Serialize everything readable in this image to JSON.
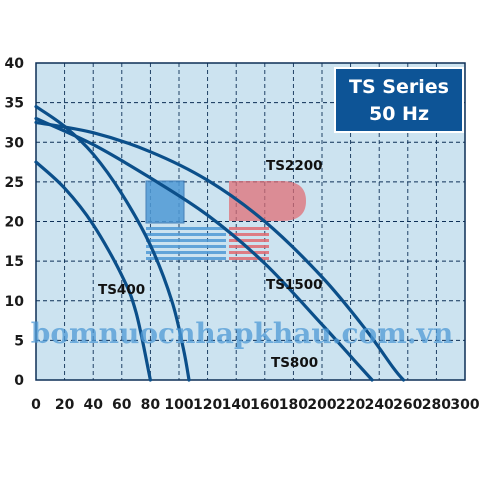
{
  "chart_data": {
    "type": "line",
    "title_lines": [
      "TS Series",
      "50 Hz"
    ],
    "xlabel": "",
    "ylabel": "",
    "xlim": [
      0,
      300
    ],
    "ylim": [
      0,
      40
    ],
    "x_ticks": [
      0,
      20,
      40,
      60,
      80,
      100,
      120,
      140,
      160,
      180,
      200,
      220,
      240,
      260,
      280,
      300
    ],
    "y_ticks": [
      0,
      5,
      10,
      15,
      20,
      25,
      30,
      35,
      40
    ],
    "grid": true,
    "series": [
      {
        "name": "TS400",
        "points": [
          [
            0,
            27.5
          ],
          [
            20,
            24.2
          ],
          [
            40,
            19.6
          ],
          [
            60,
            13.2
          ],
          [
            70,
            8.5
          ],
          [
            80,
            0
          ]
        ]
      },
      {
        "name": "TS800",
        "points": [
          [
            0,
            34.5
          ],
          [
            20,
            32.0
          ],
          [
            40,
            28.5
          ],
          [
            60,
            23.5
          ],
          [
            80,
            17.0
          ],
          [
            95,
            10.0
          ],
          [
            103,
            4.0
          ],
          [
            107,
            0
          ]
        ]
      },
      {
        "name": "TS1500",
        "points": [
          [
            0,
            33.0
          ],
          [
            40,
            29.7
          ],
          [
            80,
            25.5
          ],
          [
            120,
            20.8
          ],
          [
            160,
            14.7
          ],
          [
            200,
            7.0
          ],
          [
            220,
            3.0
          ],
          [
            235,
            0
          ]
        ]
      },
      {
        "name": "TS2200",
        "points": [
          [
            0,
            32.5
          ],
          [
            40,
            31.2
          ],
          [
            80,
            28.8
          ],
          [
            120,
            25.2
          ],
          [
            160,
            20.0
          ],
          [
            200,
            13.0
          ],
          [
            230,
            6.5
          ],
          [
            250,
            1.5
          ],
          [
            257,
            0
          ]
        ]
      }
    ]
  },
  "watermark": "bomnuocnhapkhau.com.vn",
  "colors": {
    "plot_bg": "#cce3f0",
    "grid": "#0d2f56",
    "curve": "#0b4f8a",
    "title_box": "#0d5496",
    "logo_blue": "#4f9ad6",
    "logo_red": "#e06b72"
  }
}
